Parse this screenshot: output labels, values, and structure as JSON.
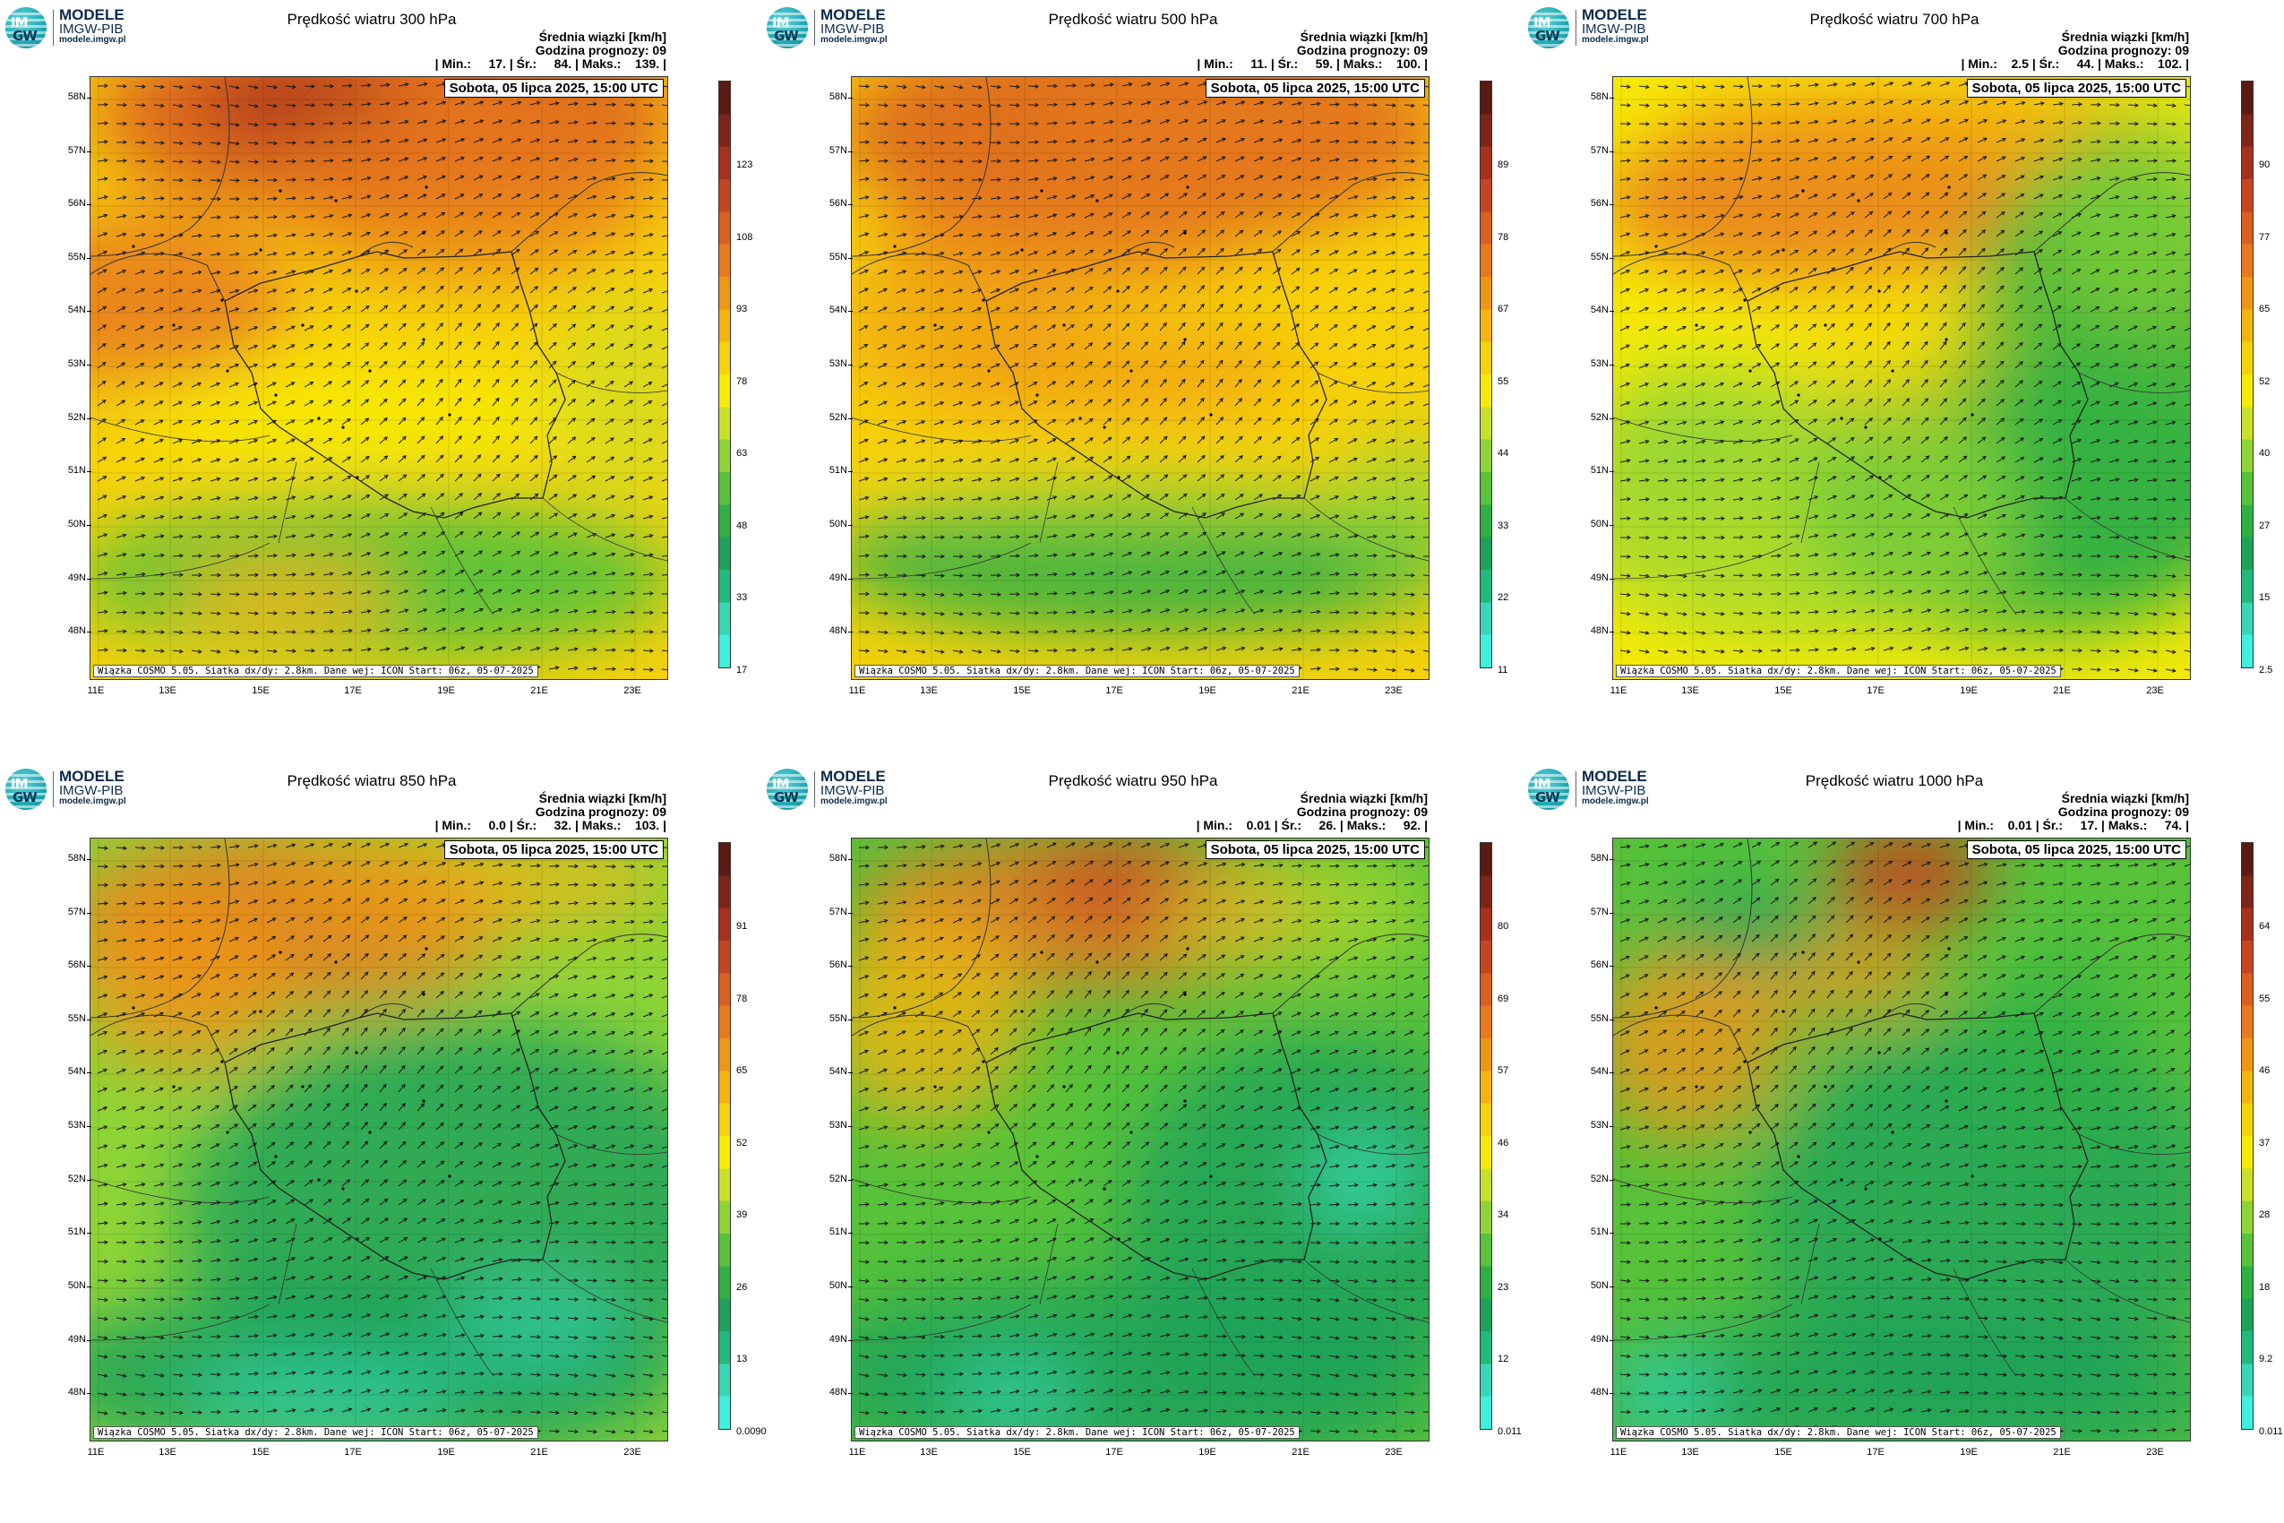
{
  "logo": {
    "badge_top": "IM",
    "badge_bottom": "GW",
    "line1": "MODELE",
    "line2": "IMGW-PIB",
    "line3": "modele.imgw.pl"
  },
  "footer_text": "Wiązka COSMO 5.05. Siatka dx/dy: 2.8km. Dane wej: ICON Start: 06z, 05-07-2025",
  "date_label": "Sobota, 05 lipca 2025, 15:00 UTC",
  "header_line1": "Średnia wiązki [km/h]",
  "header_line2": "Godzina prognozy: 09",
  "lat_labels": [
    "58N",
    "57N",
    "56N",
    "55N",
    "54N",
    "53N",
    "52N",
    "51N",
    "50N",
    "49N",
    "48N"
  ],
  "lon_labels": [
    "11E",
    "13E",
    "15E",
    "17E",
    "19E",
    "21E",
    "23E"
  ],
  "colors": [
    "#3ff0dc",
    "#39d6b6",
    "#22b97c",
    "#1ea25a",
    "#2fb043",
    "#57c23a",
    "#8ed436",
    "#c8e02a",
    "#f7ea06",
    "#f7d20a",
    "#f3b410",
    "#ef9615",
    "#e87a1d",
    "#db5f20",
    "#c74420",
    "#a8311c",
    "#7e2418",
    "#5a1a12"
  ],
  "panels": [
    {
      "title": "Prędkość wiatru 300 hPa",
      "stats": "| Min.:     17. | Śr.:     84. | Maks.:    139. |",
      "ticks": [
        "17",
        "33",
        "48",
        "63",
        "78",
        "93",
        "108",
        "123"
      ]
    },
    {
      "title": "Prędkość wiatru 500 hPa",
      "stats": "| Min.:     11. | Śr.:     59. | Maks.:    100. |",
      "ticks": [
        "11",
        "22",
        "33",
        "44",
        "55",
        "67",
        "78",
        "89"
      ]
    },
    {
      "title": "Prędkość wiatru 700 hPa",
      "stats": "| Min.:    2.5 | Śr.:     44. | Maks.:    102. |",
      "ticks": [
        "2.5",
        "15",
        "27",
        "40",
        "52",
        "65",
        "77",
        "90"
      ]
    },
    {
      "title": "Prędkość wiatru 850 hPa",
      "stats": "| Min.:     0.0 | Śr.:     32. | Maks.:    103. |",
      "ticks": [
        "0.0090",
        "13",
        "26",
        "39",
        "52",
        "65",
        "78",
        "91"
      ]
    },
    {
      "title": "Prędkość wiatru 950 hPa",
      "stats": "| Min.:    0.01 | Śr.:     26. | Maks.:     92. |",
      "ticks": [
        "0.011",
        "12",
        "23",
        "34",
        "46",
        "57",
        "69",
        "80"
      ]
    },
    {
      "title": "Prędkość wiatru 1000 hPa",
      "stats": "| Min.:    0.01 | Śr.:     17. | Maks.:     74. |",
      "ticks": [
        "0.011",
        "9.2",
        "18",
        "28",
        "37",
        "46",
        "55",
        "64"
      ]
    }
  ]
}
